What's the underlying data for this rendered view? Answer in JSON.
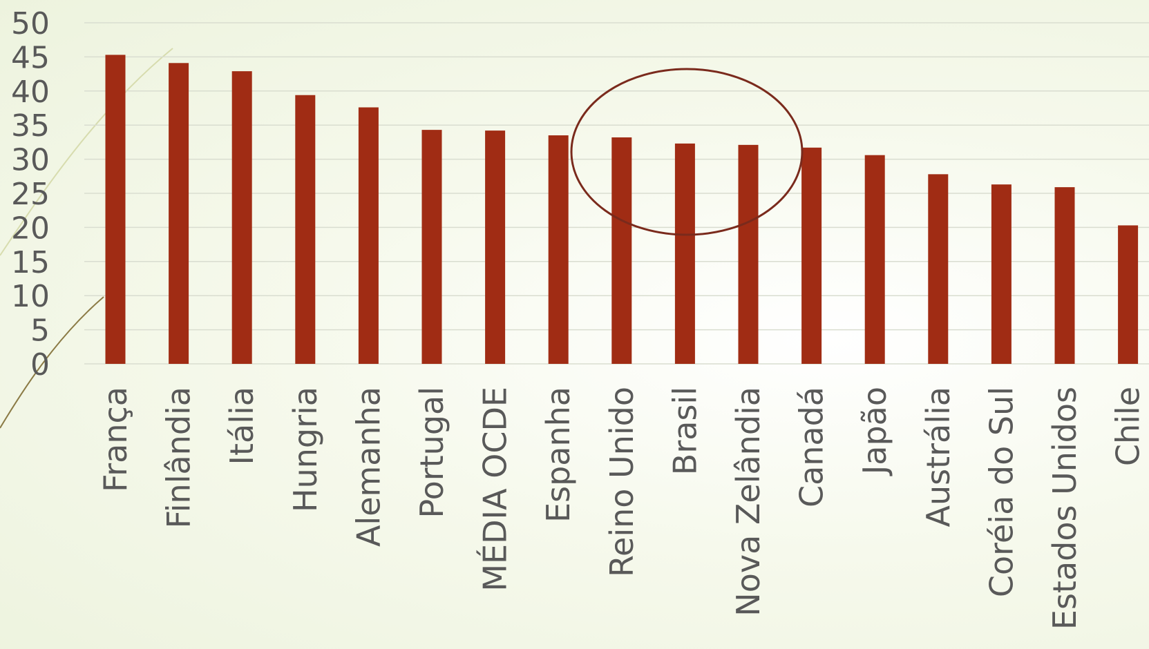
{
  "chart_data": {
    "type": "bar",
    "categories": [
      "França",
      "Finlândia",
      "Itália",
      "Hungria",
      "Alemanha",
      "Portugal",
      "MÉDIA OCDE",
      "Espanha",
      "Reino Unido",
      "Brasil",
      "Nova Zelândia",
      "Canadá",
      "Japão",
      "Austrália",
      "Coréia do Sul",
      "Estados Unidos",
      "Chile"
    ],
    "values": [
      45.3,
      44.1,
      42.9,
      39.4,
      37.6,
      34.3,
      34.2,
      33.5,
      33.2,
      32.3,
      32.1,
      31.7,
      30.6,
      27.8,
      26.3,
      25.9,
      20.3
    ],
    "ylim": [
      0,
      50
    ],
    "y_ticks": [
      "0",
      "5",
      "10",
      "15",
      "20",
      "25",
      "30",
      "35",
      "40",
      "45",
      "50"
    ],
    "grid": true,
    "legend": "none",
    "highlight": [
      "Reino Unido",
      "Brasil",
      "Nova Zelândia"
    ],
    "colors": {
      "bar": "#a02c14",
      "highlight_ellipse": "#7a2a1c",
      "grid": "#d9ddd0",
      "tick_text": "#595959",
      "decor_line": "#8b7a45"
    }
  }
}
